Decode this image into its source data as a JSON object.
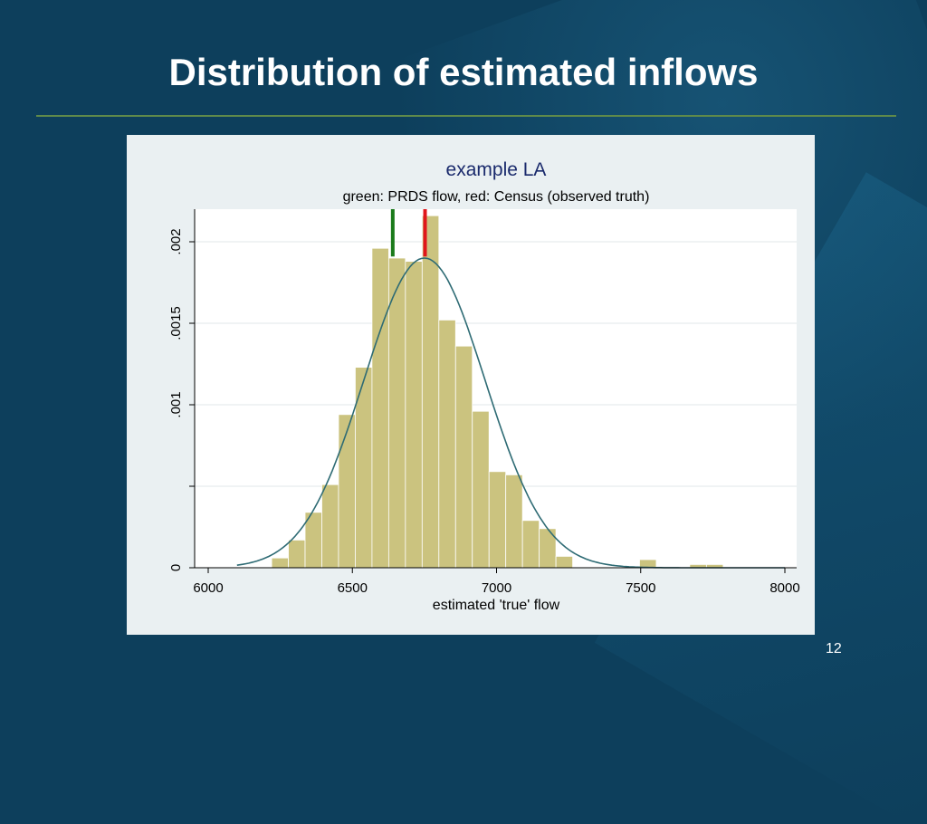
{
  "slide": {
    "title": "Distribution of estimated inflows",
    "page_number": "12"
  },
  "colors": {
    "background": "#0d3f5c",
    "bar_fill": "#cbc37f",
    "bar_stroke": "#ffffff",
    "curve": "#2e6b74",
    "prds_line": "#1a7a1a",
    "census_line": "#e0161b",
    "title_color": "#1a2a6c"
  },
  "chart_data": {
    "type": "bar",
    "title": "example LA",
    "subtitle": "green: PRDS flow, red: Census (observed truth)",
    "xlabel": "estimated 'true' flow",
    "ylabel": "",
    "xlim": [
      6000,
      8000
    ],
    "ylim": [
      0,
      0.0022
    ],
    "x_ticks": [
      6000,
      6500,
      7000,
      7500,
      8000
    ],
    "x_tick_labels": [
      "6000",
      "6500",
      "7000",
      "7500",
      "8000"
    ],
    "y_ticks": [
      0,
      0.0005,
      0.001,
      0.0015,
      0.002
    ],
    "y_tick_labels": [
      "0",
      "",
      ".001",
      ".0015",
      ".002"
    ],
    "grid": true,
    "bin_width": 58,
    "bars": [
      {
        "start": 6220,
        "value": 6e-05
      },
      {
        "start": 6278,
        "value": 0.00017
      },
      {
        "start": 6336,
        "value": 0.00034
      },
      {
        "start": 6394,
        "value": 0.00051
      },
      {
        "start": 6452,
        "value": 0.00094
      },
      {
        "start": 6510,
        "value": 0.00123
      },
      {
        "start": 6568,
        "value": 0.00196
      },
      {
        "start": 6626,
        "value": 0.0019
      },
      {
        "start": 6684,
        "value": 0.00188
      },
      {
        "start": 6742,
        "value": 0.00216
      },
      {
        "start": 6800,
        "value": 0.00152
      },
      {
        "start": 6858,
        "value": 0.00136
      },
      {
        "start": 6916,
        "value": 0.00096
      },
      {
        "start": 6974,
        "value": 0.00059
      },
      {
        "start": 7032,
        "value": 0.00057
      },
      {
        "start": 7090,
        "value": 0.00029
      },
      {
        "start": 7148,
        "value": 0.00024
      },
      {
        "start": 7206,
        "value": 7e-05
      },
      {
        "start": 7496,
        "value": 5e-05
      },
      {
        "start": 7670,
        "value": 2e-05
      },
      {
        "start": 7728,
        "value": 2e-05
      }
    ],
    "normal_curve": {
      "mean": 6750,
      "sd": 210,
      "peak": 0.0019,
      "x_range": [
        6100,
        8000
      ]
    },
    "markers": [
      {
        "name": "PRDS flow",
        "x": 6640,
        "color": "#1a7a1a"
      },
      {
        "name": "Census (observed truth)",
        "x": 6752,
        "color": "#e0161b"
      }
    ]
  }
}
